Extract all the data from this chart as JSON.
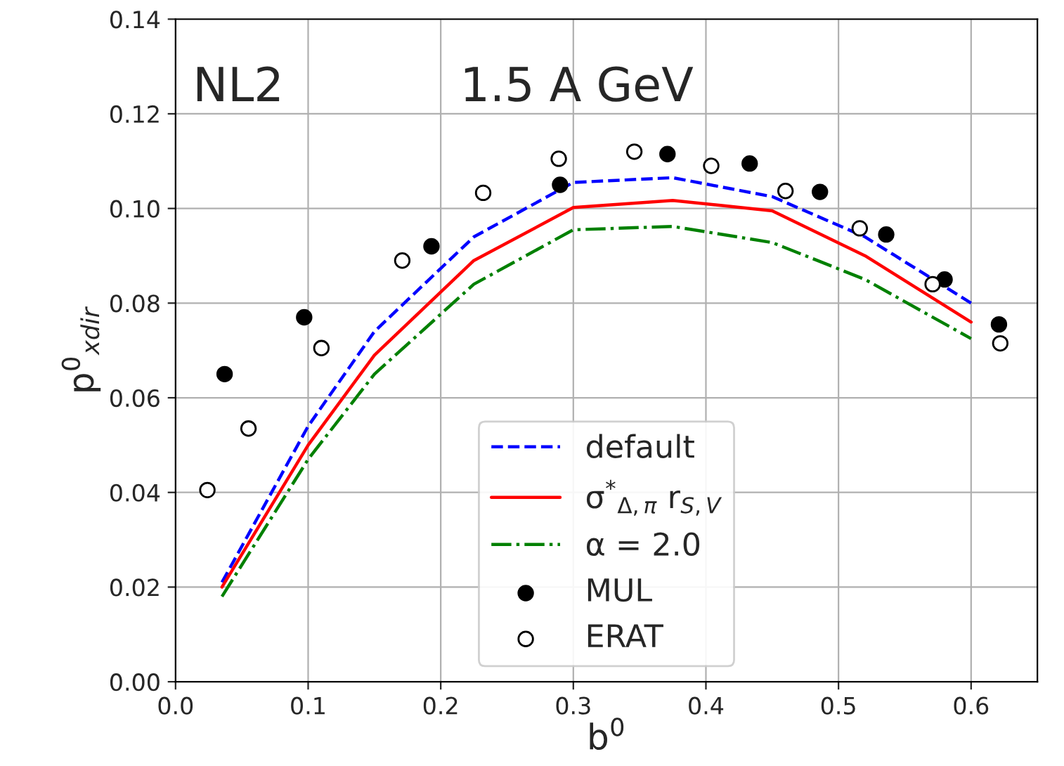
{
  "chart_data": {
    "type": "line",
    "xlabel": "b$^{0}$",
    "ylabel": "p$^{0}$$_{xdir}$",
    "annotations": [
      "NL2",
      "1.5 A GeV"
    ],
    "xlim": [
      0.0,
      0.65
    ],
    "xticks": [
      {
        "value": 0.0,
        "label": "0.0"
      },
      0.1,
      0.2,
      0.3,
      0.4,
      0.5,
      0.6
    ],
    "ylim": [
      0.0,
      0.14
    ],
    "yticks": [
      {
        "value": 0.0,
        "label": "0.00"
      },
      {
        "value": 0.02,
        "label": "0.02"
      },
      {
        "value": 0.04,
        "label": "0.04"
      },
      {
        "value": 0.06,
        "label": "0.06"
      },
      {
        "value": 0.08,
        "label": "0.08"
      },
      {
        "value": 0.1,
        "label": "0.10"
      },
      {
        "value": 0.12,
        "label": "0.12"
      },
      {
        "value": 0.14,
        "label": "0.14"
      }
    ],
    "grid": true,
    "legend": "bottom",
    "series": [
      {
        "name": "default",
        "color": "#0000ff",
        "line_style": "dashed",
        "x": [
          0.035,
          0.1,
          0.15,
          0.225,
          0.3,
          0.375,
          0.45,
          0.52,
          0.6
        ],
        "values": [
          0.021,
          0.054,
          0.074,
          0.094,
          0.1055,
          0.1065,
          0.1025,
          0.094,
          0.08
        ]
      },
      {
        "name": "σ$^{*}$$_{Δ,π}$ r$_{S,V}$",
        "color": "#ff0000",
        "line_style": "solid",
        "x": [
          0.035,
          0.1,
          0.15,
          0.225,
          0.3,
          0.375,
          0.45,
          0.52,
          0.6
        ],
        "values": [
          0.02,
          0.05,
          0.069,
          0.089,
          0.1002,
          0.1017,
          0.0995,
          0.09,
          0.076
        ]
      },
      {
        "name": "α = 2.0",
        "color": "#008000",
        "line_style": "dashdot",
        "x": [
          0.035,
          0.1,
          0.15,
          0.225,
          0.3,
          0.375,
          0.45,
          0.52,
          0.6
        ],
        "values": [
          0.018,
          0.047,
          0.065,
          0.084,
          0.0955,
          0.0962,
          0.0928,
          0.085,
          0.0725
        ]
      },
      {
        "name": "MUL",
        "type": "scatter",
        "color": "#000000",
        "marker": "circle",
        "x": [
          0.037,
          0.097,
          0.193,
          0.29,
          0.371,
          0.433,
          0.486,
          0.536,
          0.58,
          0.621
        ],
        "values": [
          0.065,
          0.077,
          0.092,
          0.105,
          0.1115,
          0.1095,
          0.1035,
          0.0945,
          0.085,
          0.0755
        ]
      },
      {
        "name": "ERAT",
        "type": "scatter",
        "color": "#ffffff",
        "marker": "circle",
        "x": [
          0.024,
          0.055,
          0.11,
          0.171,
          0.232,
          0.289,
          0.346,
          0.404,
          0.46,
          0.516,
          0.571,
          0.622
        ],
        "values": [
          0.0405,
          0.0535,
          0.0705,
          0.089,
          0.1033,
          0.1105,
          0.112,
          0.109,
          0.1037,
          0.0958,
          0.084,
          0.0715
        ]
      }
    ]
  }
}
